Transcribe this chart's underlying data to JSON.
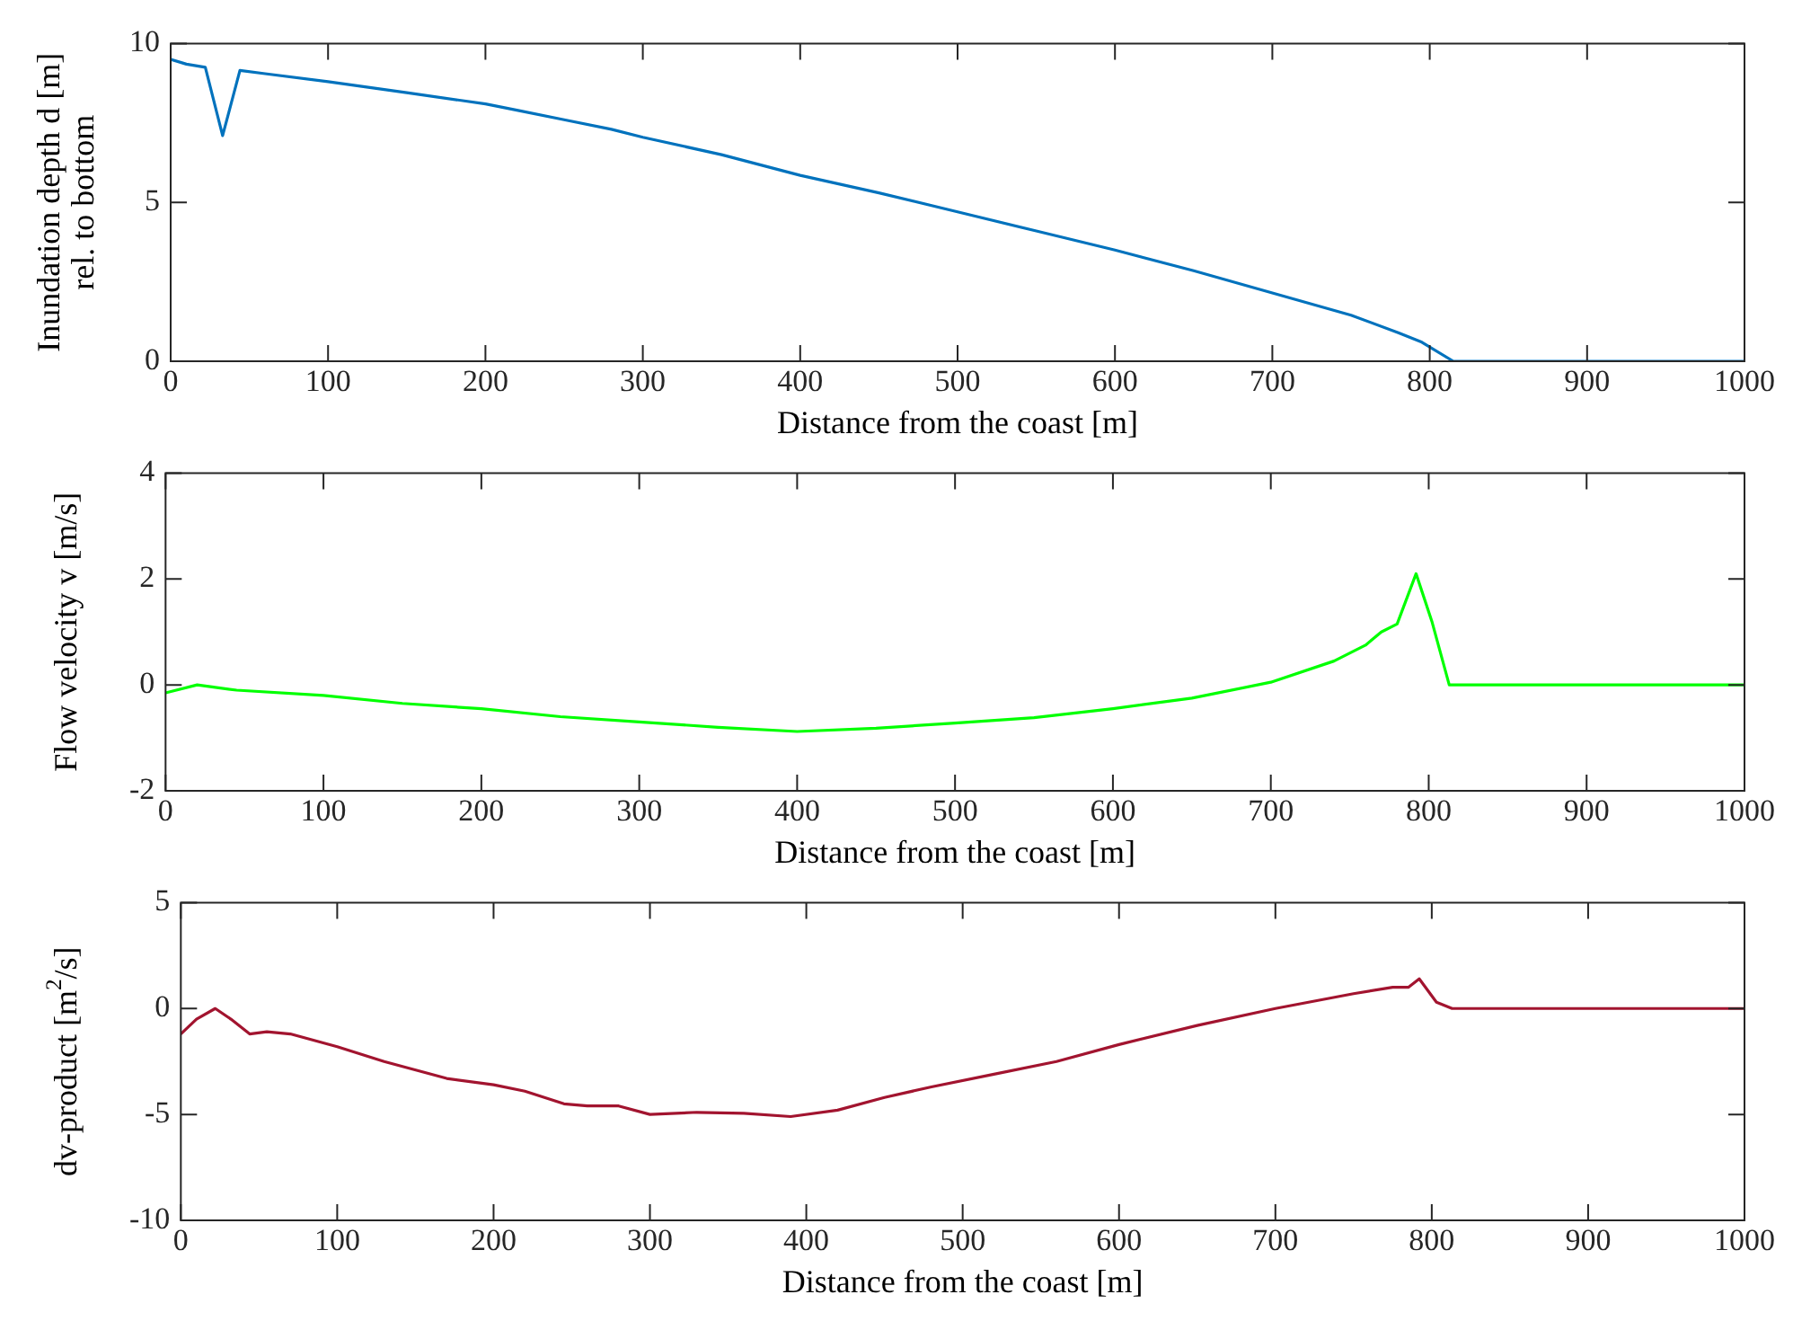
{
  "chart_data": [
    {
      "type": "line",
      "xlabel": "Distance from the coast [m]",
      "ylabel": "Inundation depth d [m]\nrel. to bottom",
      "xlim": [
        0,
        1000
      ],
      "xticks": [
        0,
        100,
        200,
        300,
        400,
        500,
        600,
        700,
        800,
        900,
        1000
      ],
      "ylim": [
        0,
        10
      ],
      "yticks": [
        0,
        5,
        10
      ],
      "grid": false,
      "legend": false,
      "series": [
        {
          "color": "#0072bd",
          "x": [
            0,
            10,
            22,
            33,
            44,
            60,
            100,
            150,
            200,
            220,
            250,
            280,
            300,
            350,
            400,
            450,
            500,
            550,
            600,
            650,
            700,
            750,
            780,
            795,
            815,
            1000
          ],
          "values": [
            9.5,
            9.35,
            9.25,
            7.1,
            9.15,
            9.05,
            8.8,
            8.45,
            8.1,
            7.9,
            7.6,
            7.3,
            7.05,
            6.5,
            5.85,
            5.3,
            4.7,
            4.1,
            3.5,
            2.85,
            2.15,
            1.45,
            0.9,
            0.6,
            0,
            0
          ]
        }
      ]
    },
    {
      "type": "line",
      "xlabel": "Distance from the coast [m]",
      "ylabel": "Flow velocity v [m/s]",
      "xlim": [
        0,
        1000
      ],
      "xticks": [
        0,
        100,
        200,
        300,
        400,
        500,
        600,
        700,
        800,
        900,
        1000
      ],
      "ylim": [
        -2,
        4
      ],
      "yticks": [
        -2,
        0,
        2,
        4
      ],
      "grid": false,
      "legend": false,
      "series": [
        {
          "color": "#00ff00",
          "x": [
            0,
            20,
            45,
            100,
            150,
            200,
            250,
            300,
            350,
            400,
            450,
            500,
            550,
            600,
            650,
            700,
            740,
            760,
            770,
            780,
            792,
            802,
            813,
            1000
          ],
          "values": [
            -0.15,
            0,
            -0.1,
            -0.2,
            -0.35,
            -0.45,
            -0.6,
            -0.7,
            -0.8,
            -0.88,
            -0.82,
            -0.72,
            -0.62,
            -0.45,
            -0.25,
            0.05,
            0.45,
            0.75,
            1.0,
            1.15,
            2.1,
            1.2,
            0,
            0
          ]
        }
      ]
    },
    {
      "type": "line",
      "xlabel": "Distance from the coast [m]",
      "ylabel": "dv-product [m$^{2}$/s]",
      "xlim": [
        0,
        1000
      ],
      "xticks": [
        0,
        100,
        200,
        300,
        400,
        500,
        600,
        700,
        800,
        900,
        1000
      ],
      "ylim": [
        -10,
        5
      ],
      "yticks": [
        -10,
        -5,
        0,
        5
      ],
      "grid": false,
      "legend": false,
      "series": [
        {
          "color": "#a2142f",
          "x": [
            0,
            10,
            22,
            32,
            44,
            55,
            70,
            100,
            130,
            170,
            200,
            220,
            245,
            260,
            280,
            300,
            330,
            360,
            390,
            420,
            450,
            480,
            520,
            560,
            600,
            650,
            700,
            750,
            775,
            785,
            792,
            803,
            813,
            1000
          ],
          "values": [
            -1.2,
            -0.5,
            0,
            -0.5,
            -1.2,
            -1.1,
            -1.2,
            -1.8,
            -2.5,
            -3.3,
            -3.6,
            -3.9,
            -4.5,
            -4.6,
            -4.6,
            -5.0,
            -4.9,
            -4.95,
            -5.1,
            -4.8,
            -4.2,
            -3.7,
            -3.1,
            -2.5,
            -1.7,
            -0.8,
            0,
            0.7,
            1.0,
            1.0,
            1.4,
            0.3,
            0,
            0
          ]
        }
      ]
    }
  ]
}
